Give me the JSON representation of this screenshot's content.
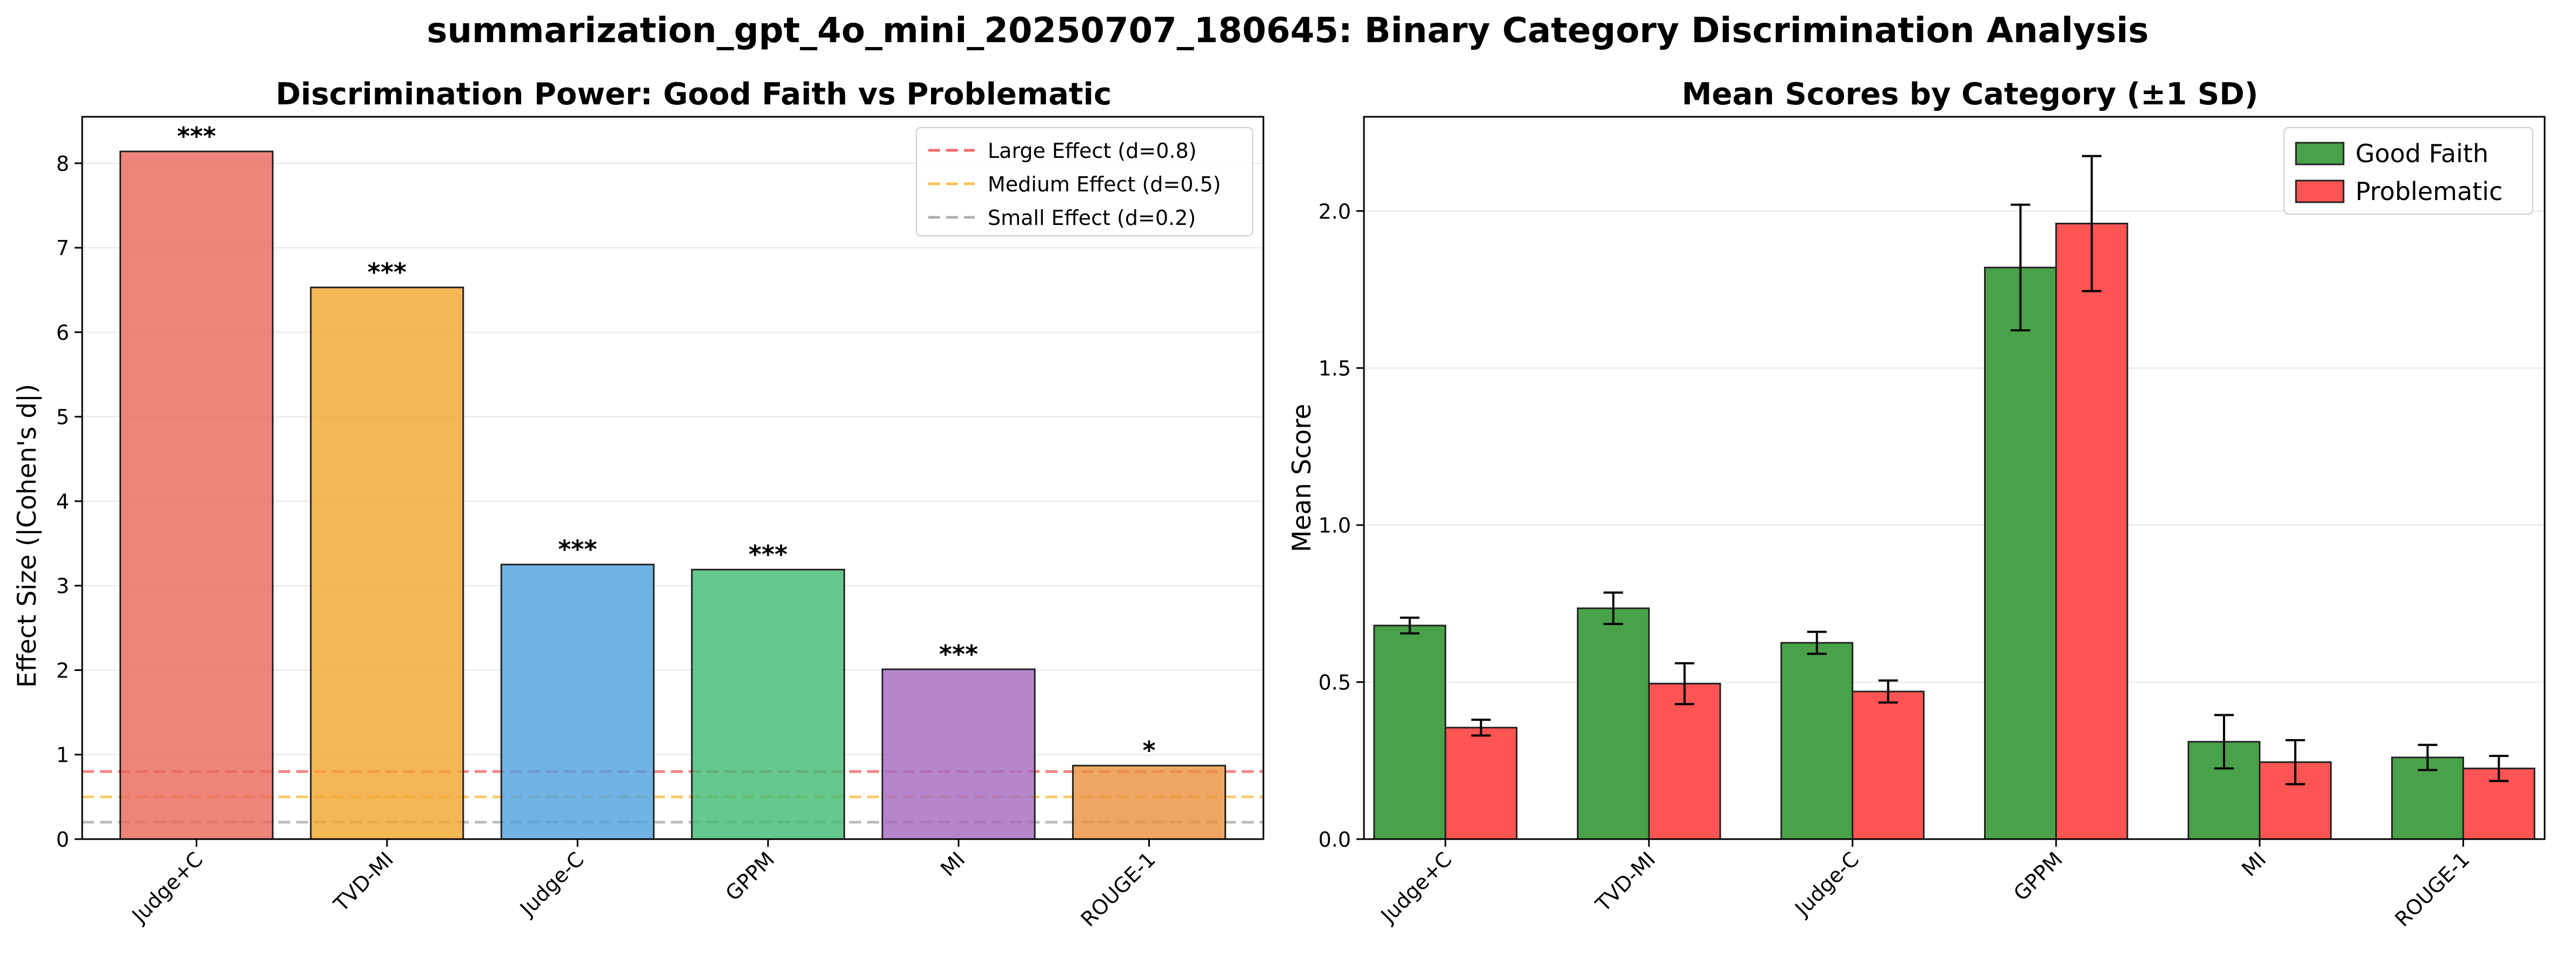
{
  "figure": {
    "title": "summarization_gpt_4o_mini_20250707_180645: Binary Category Discrimination Analysis"
  },
  "chart_data": [
    {
      "type": "bar",
      "title": "Discrimination Power: Good Faith vs Problematic",
      "xlabel": "",
      "ylabel": "Effect Size (|Cohen's d|)",
      "ylim": [
        0,
        8.55
      ],
      "yticks": [
        0,
        1,
        2,
        3,
        4,
        5,
        6,
        7,
        8
      ],
      "grid": "y",
      "categories": [
        "Judge+C",
        "TVD-MI",
        "Judge-C",
        "GPPM",
        "MI",
        "ROUGE-1"
      ],
      "values": [
        8.14,
        6.53,
        3.25,
        3.19,
        2.01,
        0.87
      ],
      "bar_colors": [
        "#e8675a",
        "#f3a52c",
        "#4da0df",
        "#3fba72",
        "#a468bf",
        "#e8913b"
      ],
      "significance": [
        "***",
        "***",
        "***",
        "***",
        "***",
        "*"
      ],
      "reference_lines": [
        {
          "label": "Large Effect (d=0.8)",
          "value": 0.8,
          "color": "#f26b6b"
        },
        {
          "label": "Medium Effect (d=0.5)",
          "value": 0.5,
          "color": "#f8c255"
        },
        {
          "label": "Small Effect (d=0.2)",
          "value": 0.2,
          "color": "#b0b0b0"
        }
      ],
      "legend_position": "top-right"
    },
    {
      "type": "bar",
      "title": "Mean Scores by Category (±1 SD)",
      "xlabel": "",
      "ylabel": "Mean Score",
      "ylim": [
        0,
        2.3
      ],
      "yticks": [
        0.0,
        0.5,
        1.0,
        1.5,
        2.0
      ],
      "grid": "y",
      "categories": [
        "Judge+C",
        "TVD-MI",
        "Judge-C",
        "GPPM",
        "MI",
        "ROUGE-1"
      ],
      "series": [
        {
          "name": "Good Faith",
          "color": "#3a9a3a",
          "values": [
            0.68,
            0.735,
            0.625,
            1.82,
            0.31,
            0.26
          ],
          "sd": [
            0.025,
            0.05,
            0.035,
            0.2,
            0.085,
            0.04
          ]
        },
        {
          "name": "Problematic",
          "color": "#ff4545",
          "values": [
            0.355,
            0.495,
            0.47,
            1.96,
            0.245,
            0.225
          ],
          "sd": [
            0.025,
            0.065,
            0.035,
            0.215,
            0.07,
            0.04
          ]
        }
      ],
      "legend_position": "top-right"
    }
  ]
}
